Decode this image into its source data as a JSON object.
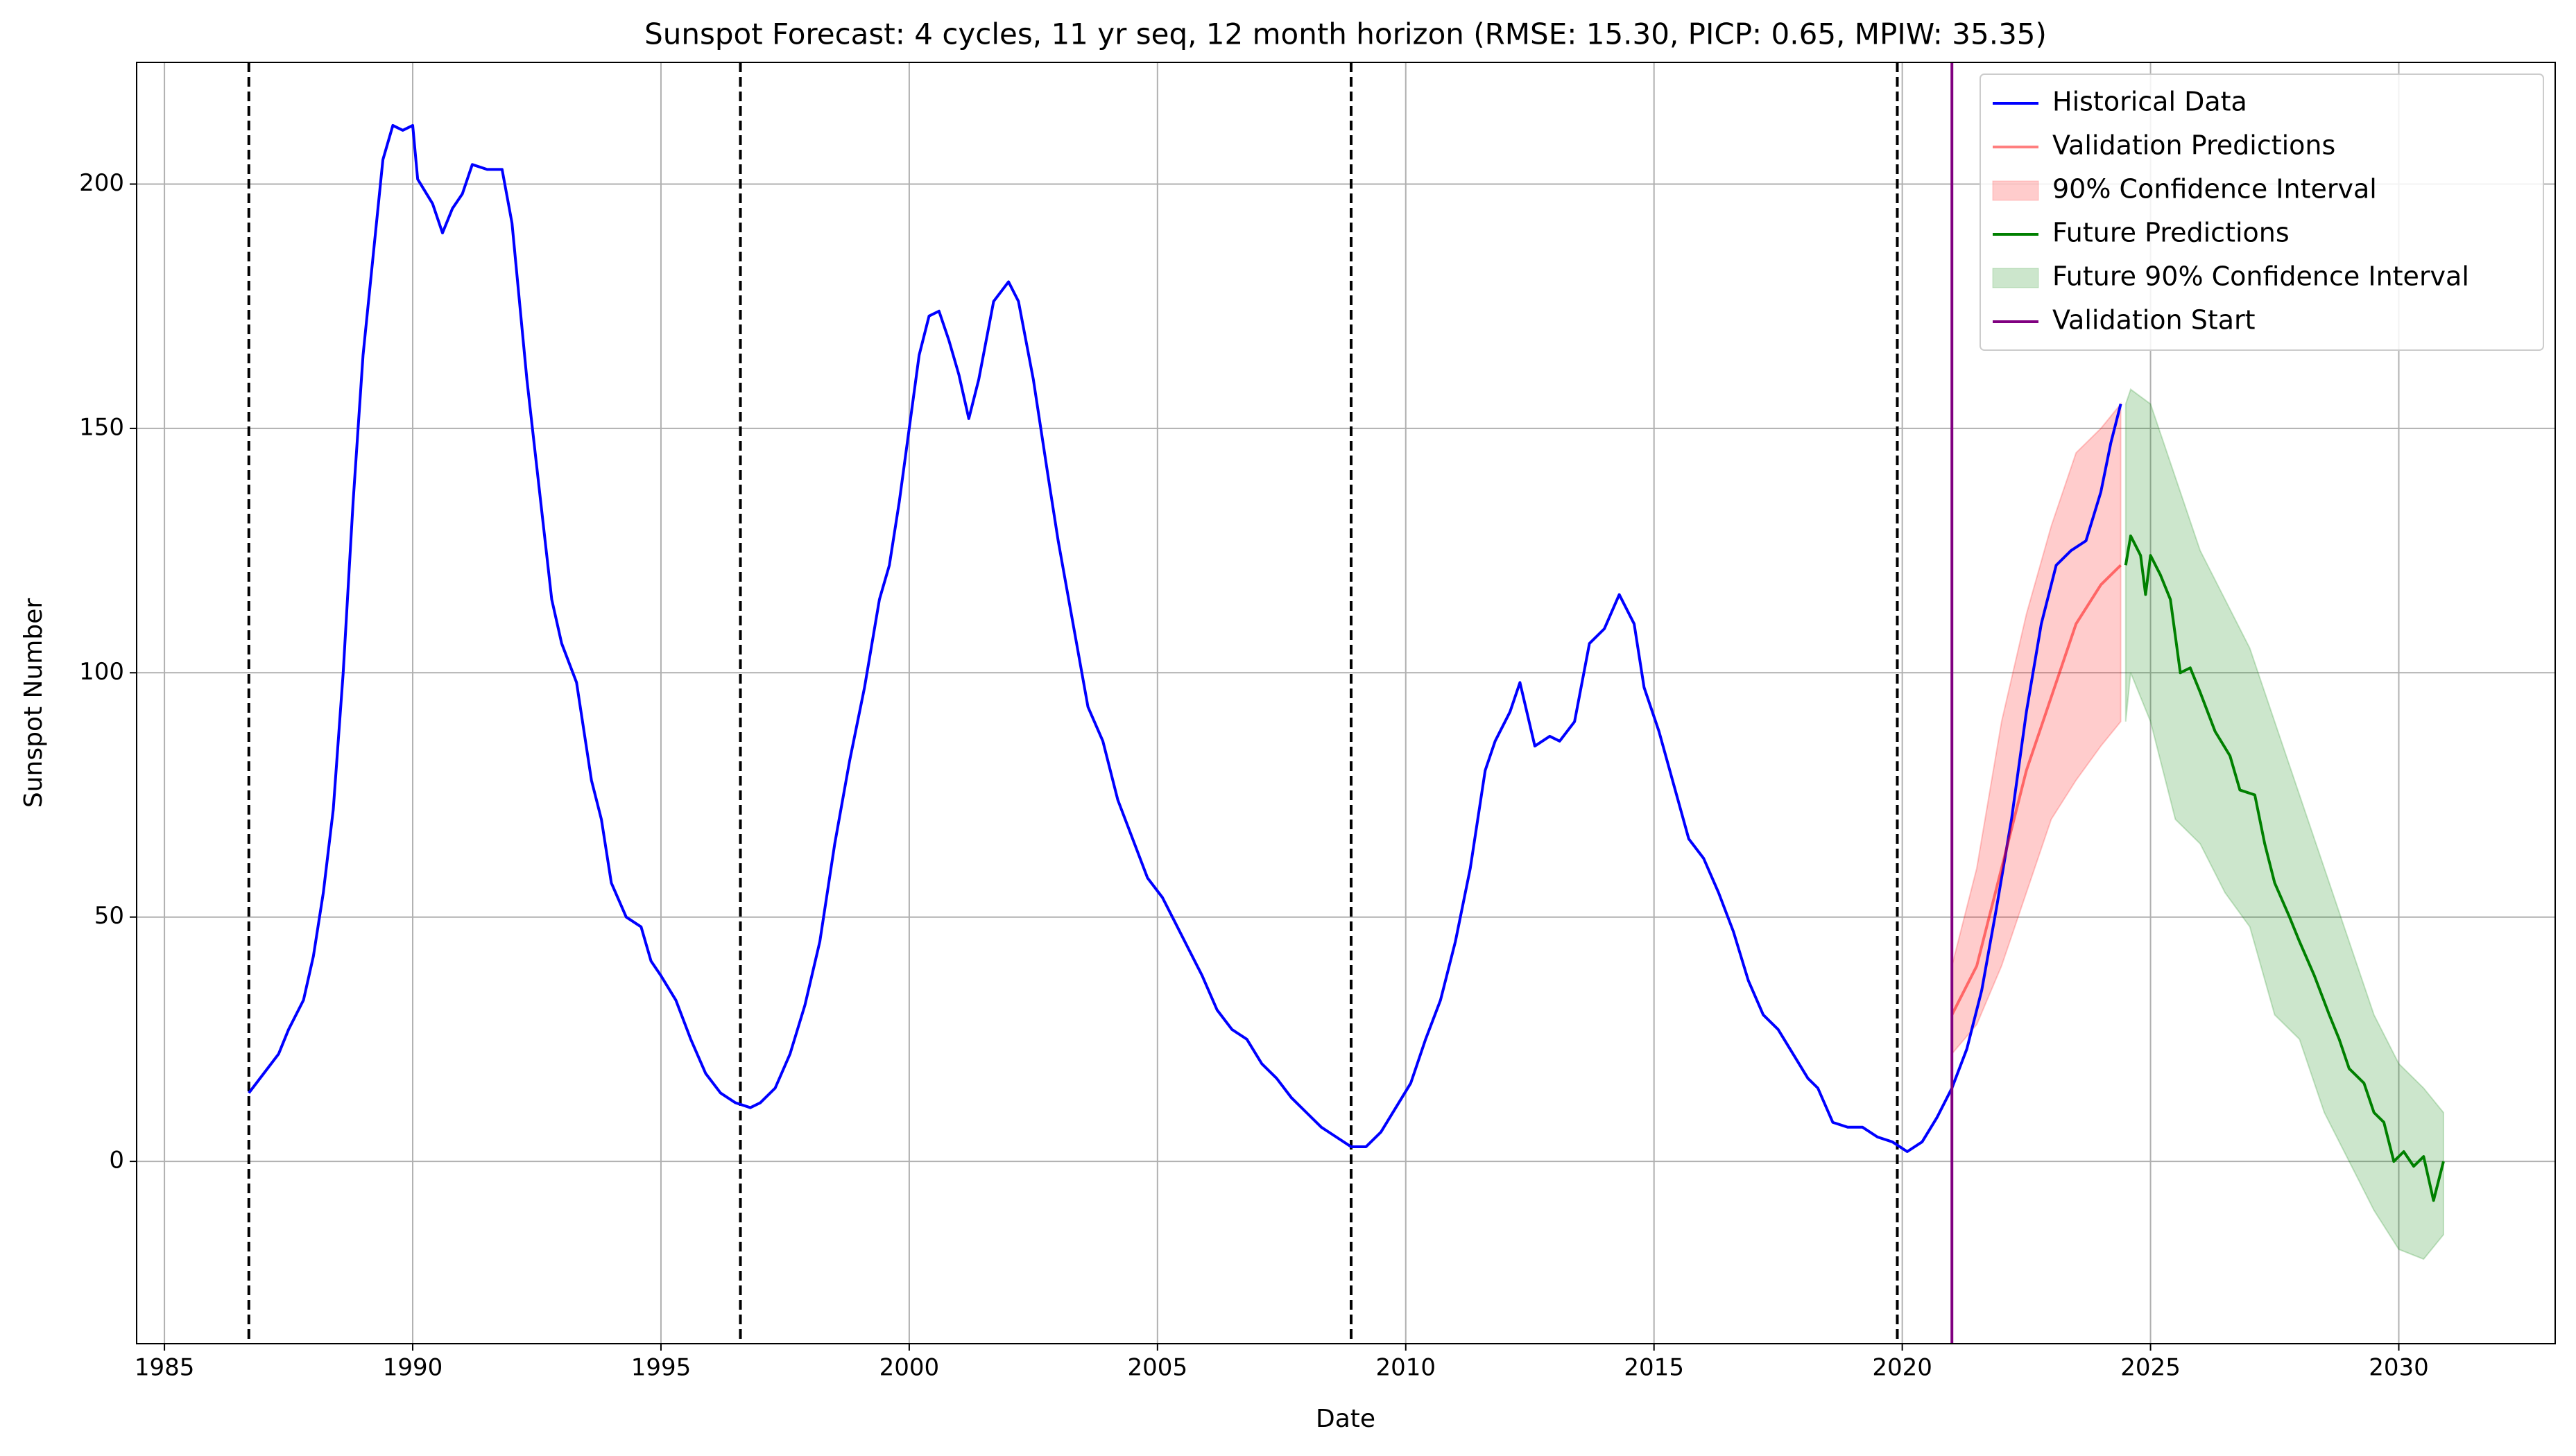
{
  "chart_data": {
    "type": "line",
    "title": "Sunspot Forecast: 4 cycles, 11 yr seq, 12 month horizon (RMSE: 15.30, PICP: 0.65, MPIW: 35.35)",
    "xlabel": "Date",
    "ylabel": "Sunspot Number",
    "xlim": [
      1984.44,
      2033.15
    ],
    "ylim": [
      -37.3,
      224.9
    ],
    "xticks": [
      1985,
      1990,
      1995,
      2000,
      2005,
      2010,
      2015,
      2020,
      2025,
      2030
    ],
    "yticks": [
      0,
      50,
      100,
      150,
      200
    ],
    "grid": true,
    "legend": "upper right",
    "cycle_boundaries": {
      "color": "#000000",
      "x": [
        1986.7,
        1996.6,
        2008.9,
        2019.9
      ]
    },
    "series": [
      {
        "name": "Historical Data",
        "kind": "line",
        "color": "#0000ff",
        "x": [
          1986.7,
          1987.0,
          1987.3,
          1987.5,
          1987.8,
          1988.0,
          1988.2,
          1988.4,
          1988.6,
          1988.8,
          1989.0,
          1989.2,
          1989.4,
          1989.6,
          1989.8,
          1990.0,
          1990.1,
          1990.4,
          1990.6,
          1990.8,
          1991.0,
          1991.2,
          1991.5,
          1991.8,
          1992.0,
          1992.3,
          1992.5,
          1992.8,
          1993.0,
          1993.3,
          1993.6,
          1993.8,
          1994.0,
          1994.3,
          1994.6,
          1994.8,
          1995.0,
          1995.3,
          1995.6,
          1995.9,
          1996.2,
          1996.5,
          1996.8,
          1997.0,
          1997.3,
          1997.6,
          1997.9,
          1998.2,
          1998.5,
          1998.8,
          1999.1,
          1999.4,
          1999.6,
          1999.8,
          2000.0,
          2000.2,
          2000.4,
          2000.6,
          2000.8,
          2001.0,
          2001.2,
          2001.4,
          2001.7,
          2002.0,
          2002.2,
          2002.5,
          2002.8,
          2003.0,
          2003.3,
          2003.6,
          2003.9,
          2004.2,
          2004.5,
          2004.8,
          2005.1,
          2005.3,
          2005.6,
          2005.9,
          2006.2,
          2006.5,
          2006.8,
          2007.1,
          2007.4,
          2007.7,
          2008.0,
          2008.3,
          2008.6,
          2008.9,
          2009.2,
          2009.5,
          2009.8,
          2010.1,
          2010.4,
          2010.7,
          2011.0,
          2011.3,
          2011.6,
          2011.8,
          2012.1,
          2012.3,
          2012.6,
          2012.9,
          2013.1,
          2013.4,
          2013.7,
          2014.0,
          2014.3,
          2014.6,
          2014.8,
          2015.1,
          2015.4,
          2015.7,
          2016.0,
          2016.3,
          2016.6,
          2016.9,
          2017.2,
          2017.5,
          2017.8,
          2018.1,
          2018.3,
          2018.6,
          2018.9,
          2019.2,
          2019.5,
          2019.8,
          2020.1,
          2020.4,
          2020.7,
          2021.0,
          2021.3,
          2021.6,
          2021.9,
          2022.2,
          2022.5,
          2022.8,
          2023.1,
          2023.4,
          2023.7,
          2024.0,
          2024.2,
          2024.4
        ],
        "values": [
          14,
          18,
          22,
          27,
          33,
          42,
          55,
          72,
          100,
          135,
          165,
          185,
          205,
          212,
          211,
          212,
          201,
          196,
          190,
          195,
          198,
          204,
          203,
          203,
          192,
          160,
          142,
          115,
          106,
          98,
          78,
          70,
          57,
          50,
          48,
          41,
          38,
          33,
          25,
          18,
          14,
          12,
          11,
          12,
          15,
          22,
          32,
          45,
          65,
          82,
          97,
          115,
          122,
          135,
          150,
          165,
          173,
          174,
          168,
          161,
          152,
          160,
          176,
          180,
          176,
          160,
          140,
          127,
          110,
          93,
          86,
          74,
          66,
          58,
          54,
          50,
          44,
          38,
          31,
          27,
          25,
          20,
          17,
          13,
          10,
          7,
          5,
          3,
          3,
          6,
          11,
          16,
          25,
          33,
          45,
          60,
          80,
          86,
          92,
          98,
          85,
          87,
          86,
          90,
          106,
          109,
          116,
          110,
          97,
          88,
          77,
          66,
          62,
          55,
          47,
          37,
          30,
          27,
          22,
          17,
          15,
          8,
          7,
          7,
          5,
          4,
          2,
          4,
          9,
          15,
          23,
          35,
          52,
          70,
          92,
          110,
          122,
          125,
          127,
          137,
          147,
          155
        ]
      },
      {
        "name": "Validation Predictions",
        "kind": "line",
        "color": "#ff0000",
        "opacity": 0.5,
        "x": [
          2021.0,
          2021.5,
          2022.0,
          2022.5,
          2023.0,
          2023.5,
          2024.0,
          2024.4
        ],
        "values": [
          30,
          40,
          60,
          80,
          95,
          110,
          118,
          122
        ]
      },
      {
        "name": "90% Confidence Interval",
        "kind": "band",
        "color": "#ff0000",
        "opacity": 0.2,
        "x": [
          2021.0,
          2021.5,
          2022.0,
          2022.5,
          2023.0,
          2023.5,
          2024.0,
          2024.4
        ],
        "lower": [
          22,
          28,
          40,
          55,
          70,
          78,
          85,
          90
        ],
        "upper": [
          40,
          60,
          90,
          112,
          130,
          145,
          150,
          155
        ]
      },
      {
        "name": "Future Predictions",
        "kind": "line",
        "color": "#008000",
        "x": [
          2024.5,
          2024.6,
          2024.8,
          2024.9,
          2025.0,
          2025.2,
          2025.4,
          2025.6,
          2025.8,
          2026.0,
          2026.3,
          2026.6,
          2026.8,
          2027.1,
          2027.3,
          2027.5,
          2027.8,
          2028.0,
          2028.3,
          2028.6,
          2028.8,
          2029.0,
          2029.3,
          2029.5,
          2029.7,
          2029.9,
          2030.1,
          2030.3,
          2030.5,
          2030.7,
          2030.9
        ],
        "values": [
          122,
          128,
          124,
          116,
          124,
          120,
          115,
          100,
          101,
          96,
          88,
          83,
          76,
          75,
          65,
          57,
          50,
          45,
          38,
          30,
          25,
          19,
          16,
          10,
          8,
          0,
          2,
          -1,
          1,
          -8,
          0
        ]
      },
      {
        "name": "Future 90% Confidence Interval",
        "kind": "band",
        "color": "#008000",
        "opacity": 0.2,
        "x": [
          2024.5,
          2024.6,
          2025.0,
          2025.5,
          2026.0,
          2026.5,
          2027.0,
          2027.5,
          2028.0,
          2028.5,
          2029.0,
          2029.5,
          2030.0,
          2030.5,
          2030.9
        ],
        "lower": [
          90,
          100,
          90,
          70,
          65,
          55,
          48,
          30,
          25,
          10,
          0,
          -10,
          -18,
          -20,
          -15
        ],
        "upper": [
          155,
          158,
          155,
          140,
          125,
          115,
          105,
          90,
          75,
          60,
          45,
          30,
          20,
          15,
          10
        ]
      },
      {
        "name": "Validation Start",
        "kind": "vline",
        "color": "#800080",
        "x": [
          2021.0
        ]
      }
    ]
  }
}
